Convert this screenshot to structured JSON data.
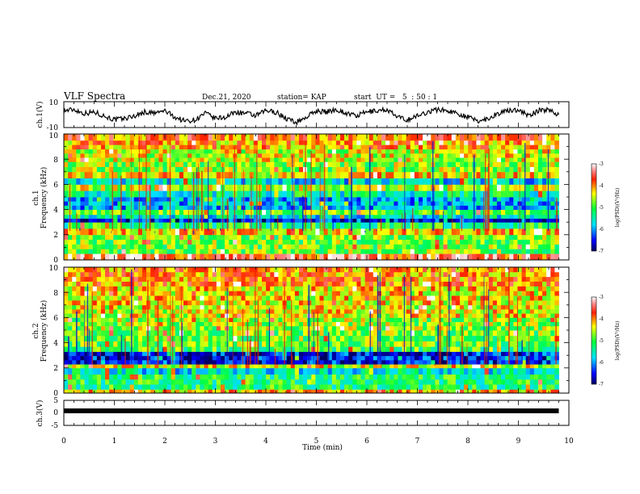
{
  "header": {
    "title": "VLF Spectra",
    "date": "Dec.21, 2020",
    "station": "station= KAP",
    "start": "start  UT =   5  : 50 : 1"
  },
  "chart_data": [
    {
      "id": "ch1-waveform",
      "type": "line",
      "ylabel": "ch.1(V)",
      "ylim": [
        -10,
        10
      ],
      "yticks": [
        "10",
        "-10"
      ],
      "x_range_min": [
        0,
        9.8
      ],
      "series": [
        {
          "x": [
            0,
            0.2,
            0.4,
            0.6,
            0.8,
            1.0,
            1.2,
            1.4,
            1.6,
            1.8,
            2.0,
            2.2,
            2.4,
            2.6,
            2.8,
            3.0,
            3.2,
            3.4,
            3.6,
            3.8,
            4.0,
            4.2,
            4.4,
            4.6,
            4.8,
            5.0,
            5.2,
            5.4,
            5.6,
            5.8,
            6.0,
            6.2,
            6.4,
            6.6,
            6.8,
            7.0,
            7.2,
            7.4,
            7.6,
            7.8,
            8.0,
            8.2,
            8.4,
            8.6,
            8.8,
            9.0,
            9.2,
            9.4,
            9.6,
            9.8
          ],
          "y": [
            3,
            4,
            1,
            2,
            -1,
            -4,
            -3,
            -1,
            2,
            1,
            3,
            -2,
            -5,
            -4,
            1,
            -3,
            -2,
            2,
            1,
            -1,
            3,
            2,
            -3,
            -6,
            -2,
            3,
            2,
            4,
            1,
            -1,
            2,
            3,
            4,
            -2,
            -4,
            -1,
            2,
            4,
            3,
            1,
            -2,
            -5,
            -3,
            1,
            3,
            4,
            -1,
            3,
            4,
            0
          ]
        }
      ]
    },
    {
      "id": "ch1-spectrogram",
      "type": "heatmap",
      "ylabel_line1": "ch.1",
      "ylabel_line2": "Frequency (kHz)",
      "ylim": [
        0,
        10
      ],
      "yticks": [
        "0",
        "2",
        "4",
        "6",
        "8",
        "10"
      ],
      "x_range_min": [
        0,
        9.8
      ],
      "bands": [
        {
          "from": 0.0,
          "to": 0.5,
          "level": -3.6
        },
        {
          "from": 0.5,
          "to": 2.0,
          "level": -4.8
        },
        {
          "from": 2.0,
          "to": 2.5,
          "level": -4.2
        },
        {
          "from": 2.5,
          "to": 3.0,
          "level": -5.2
        },
        {
          "from": 3.0,
          "to": 3.3,
          "level": -6.5
        },
        {
          "from": 3.3,
          "to": 3.6,
          "level": -5.6
        },
        {
          "from": 3.6,
          "to": 4.0,
          "level": -4.9
        },
        {
          "from": 4.0,
          "to": 5.0,
          "level": -5.9
        },
        {
          "from": 5.0,
          "to": 5.5,
          "level": -5.4
        },
        {
          "from": 5.5,
          "to": 6.0,
          "level": -4.6
        },
        {
          "from": 6.0,
          "to": 6.5,
          "level": -5.7
        },
        {
          "from": 6.5,
          "to": 7.0,
          "level": -4.3
        },
        {
          "from": 7.0,
          "to": 7.8,
          "level": -4.7
        },
        {
          "from": 7.8,
          "to": 8.8,
          "level": -4.5
        },
        {
          "from": 8.8,
          "to": 9.5,
          "level": -4.1
        },
        {
          "from": 9.5,
          "to": 10.0,
          "level": -3.9
        }
      ],
      "colorbar": {
        "label": "log(PSD)(V²/Hz)",
        "range": [
          -7,
          -3
        ],
        "ticks": [
          "-3",
          "-4",
          "-5",
          "-6",
          "-7"
        ]
      }
    },
    {
      "id": "ch2-spectrogram",
      "type": "heatmap",
      "ylabel_line1": "ch.2",
      "ylabel_line2": "Frequency (kHz)",
      "ylim": [
        0,
        10
      ],
      "yticks": [
        "0",
        "2",
        "4",
        "6",
        "8",
        "10"
      ],
      "x_range_min": [
        0,
        9.8
      ],
      "bands": [
        {
          "from": 0.0,
          "to": 0.3,
          "level": -4.2
        },
        {
          "from": 0.3,
          "to": 1.5,
          "level": -5.2
        },
        {
          "from": 1.5,
          "to": 2.0,
          "level": -5.6
        },
        {
          "from": 2.0,
          "to": 2.3,
          "level": -4.4
        },
        {
          "from": 2.3,
          "to": 3.3,
          "level": -6.5
        },
        {
          "from": 3.3,
          "to": 3.7,
          "level": -5.0
        },
        {
          "from": 3.7,
          "to": 5.0,
          "level": -4.8
        },
        {
          "from": 5.0,
          "to": 6.0,
          "level": -4.7
        },
        {
          "from": 6.0,
          "to": 7.0,
          "level": -4.4
        },
        {
          "from": 7.0,
          "to": 8.5,
          "level": -4.3
        },
        {
          "from": 8.5,
          "to": 10.0,
          "level": -4.0
        }
      ],
      "colorbar": {
        "label": "log(PSD)(V²/Hz)",
        "range": [
          -7,
          -3
        ],
        "ticks": [
          "-3",
          "-4",
          "-5",
          "-6",
          "-7"
        ]
      }
    },
    {
      "id": "ch3-waveform",
      "type": "line",
      "ylabel": "ch.3(V)",
      "ylim": [
        -5,
        5
      ],
      "yticks": [
        "5",
        "0",
        "-5"
      ],
      "x_range_min": [
        0,
        9.8
      ],
      "series": [
        {
          "x": [
            0,
            9.8
          ],
          "y": [
            0.8,
            0.8
          ]
        }
      ]
    }
  ],
  "xaxis": {
    "label": "Time (min)",
    "range": [
      0,
      10
    ],
    "ticks": [
      "0",
      "1",
      "2",
      "3",
      "4",
      "5",
      "6",
      "7",
      "8",
      "9",
      "10"
    ]
  }
}
